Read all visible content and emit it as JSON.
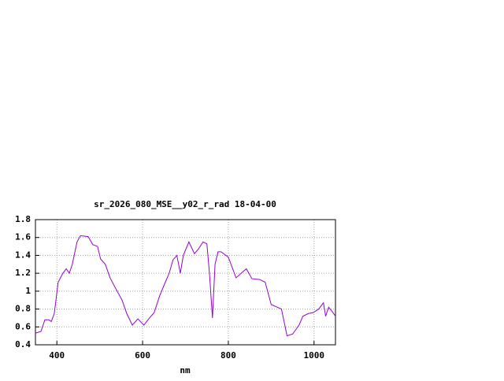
{
  "chart_data": {
    "type": "line",
    "title": "sr_2026_080_MSE__y02_r_rad 18-04-00",
    "x_label": "nm",
    "xlim": [
      350,
      1050
    ],
    "xticks": [
      400,
      600,
      800,
      1000
    ],
    "ylim": [
      0.4,
      1.8
    ],
    "yticks": [
      0.4,
      0.6,
      0.8,
      1,
      1.2,
      1.4,
      1.6,
      1.8
    ],
    "grid": true,
    "series": [
      {
        "color": "#9400d3",
        "x": [
          350,
          363,
          372,
          381,
          387,
          394,
          403,
          414,
          422,
          429,
          436,
          447,
          455,
          473,
          484,
          495,
          502,
          513,
          524,
          535,
          552,
          563,
          576,
          589,
          603,
          616,
          627,
          640,
          653,
          662,
          671,
          680,
          688,
          695,
          708,
          721,
          730,
          741,
          750,
          756,
          763,
          769,
          776,
          783,
          800,
          818,
          842,
          855,
          873,
          886,
          900,
          924,
          937,
          950,
          965,
          974,
          987,
          998,
          1011,
          1022,
          1027,
          1034,
          1041,
          1050
        ],
        "values": [
          0.53,
          0.55,
          0.68,
          0.68,
          0.66,
          0.75,
          1.1,
          1.2,
          1.25,
          1.2,
          1.3,
          1.55,
          1.62,
          1.61,
          1.52,
          1.5,
          1.36,
          1.3,
          1.15,
          1.05,
          0.9,
          0.75,
          0.62,
          0.69,
          0.62,
          0.7,
          0.76,
          0.95,
          1.1,
          1.2,
          1.35,
          1.4,
          1.2,
          1.4,
          1.55,
          1.42,
          1.47,
          1.55,
          1.53,
          1.2,
          0.7,
          1.3,
          1.44,
          1.44,
          1.38,
          1.15,
          1.25,
          1.14,
          1.13,
          1.1,
          0.85,
          0.8,
          0.5,
          0.52,
          0.62,
          0.72,
          0.75,
          0.76,
          0.8,
          0.87,
          0.72,
          0.82,
          0.78,
          0.72
        ]
      }
    ]
  }
}
